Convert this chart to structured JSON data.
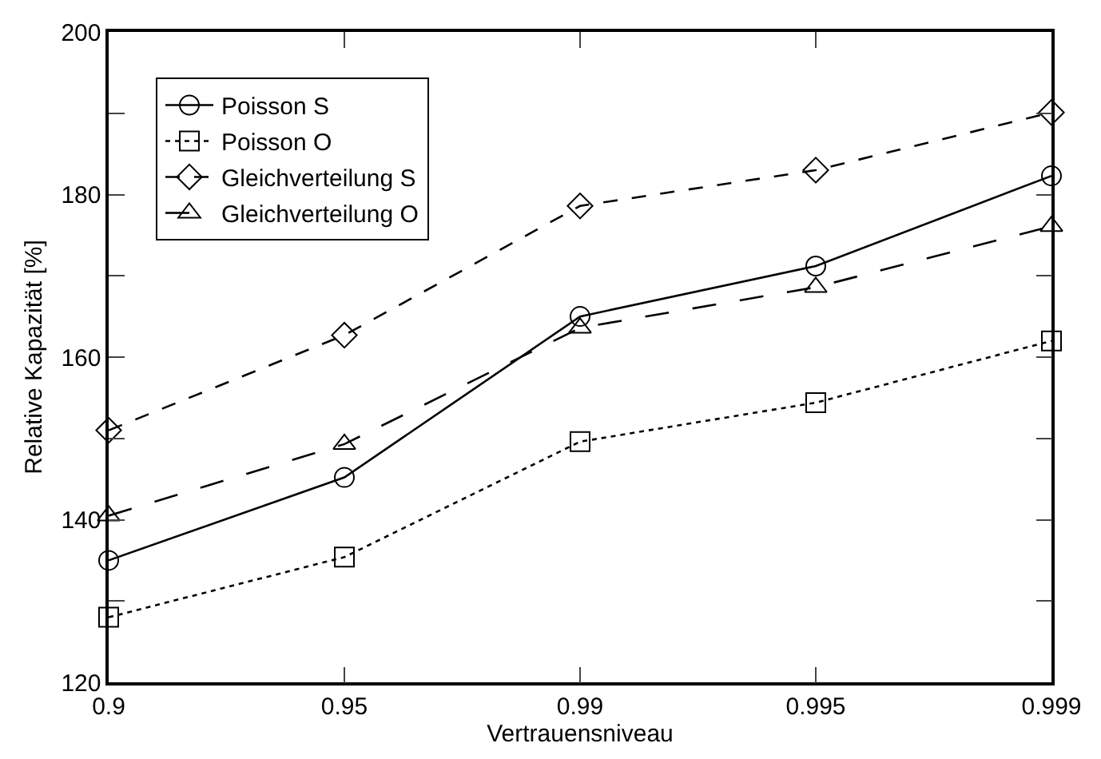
{
  "chart_data": {
    "type": "line",
    "xlabel": "Vertrauensniveau",
    "ylabel": "Relative Kapazität [%]",
    "categories": [
      "0.9",
      "0.95",
      "0.99",
      "0.995",
      "0.999"
    ],
    "ylim": [
      120,
      200
    ],
    "yticks": [
      120,
      {
        "value": 130,
        "label": null
      },
      140,
      {
        "value": 150,
        "label": null
      },
      160,
      {
        "value": 170,
        "label": null
      },
      180,
      {
        "value": 190,
        "label": null
      },
      200
    ],
    "grid": false,
    "legend": "top left",
    "series": [
      {
        "name": "Poisson S",
        "color": "#000000",
        "marker": "circle",
        "line_style": "solid",
        "values": [
          135,
          145.2,
          165,
          171.2,
          182.3
        ]
      },
      {
        "name": "Poisson O",
        "color": "#000000",
        "marker": "square",
        "line_style": "dotted",
        "values": [
          128,
          135.4,
          149.6,
          154.4,
          162
        ]
      },
      {
        "name": "Gleichverteilung S",
        "color": "#000000",
        "marker": "diamond",
        "line_style": "dashed",
        "values": [
          151,
          162.7,
          178.6,
          183,
          190.1
        ]
      },
      {
        "name": "Gleichverteilung O",
        "color": "#000000",
        "marker": "triangle",
        "line_style": "longdash",
        "values": [
          140.5,
          149.3,
          163.6,
          168.6,
          176.1
        ]
      }
    ]
  }
}
